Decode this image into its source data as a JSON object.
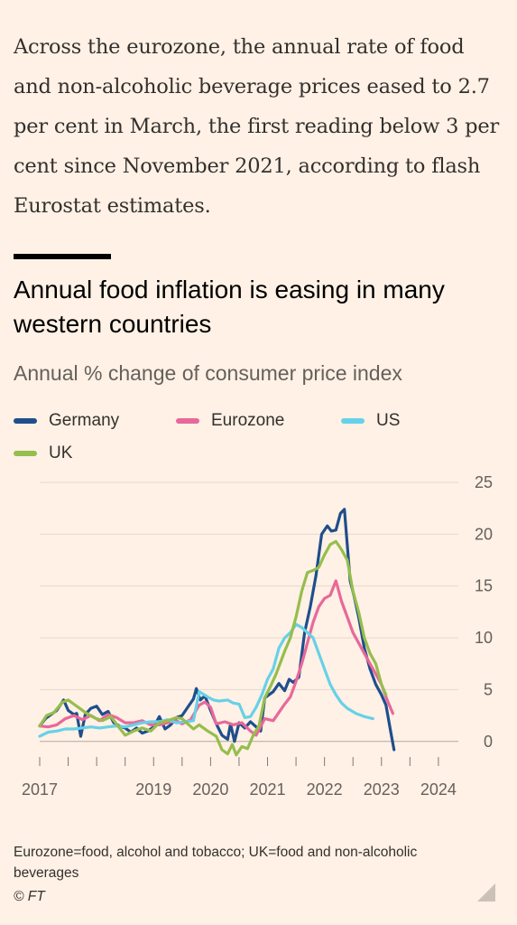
{
  "article": {
    "intro": "Across the eurozone, the annual rate of food and non-alcoholic beverage prices eased to 2.7 per cent in March, the first reading below 3 per cent since November 2021, according to flash Eurostat estimates."
  },
  "chart_data": {
    "type": "line",
    "title": "Annual food inflation is easing in many western countries",
    "subtitle": "Annual % change of consumer price index",
    "xlabel": "",
    "ylabel": "",
    "xlim": [
      2017.0,
      2024.35
    ],
    "ylim": [
      -1.5,
      25
    ],
    "y_ticks": [
      0,
      5,
      10,
      15,
      20,
      25
    ],
    "x_ticks": [
      2017,
      2019,
      2020,
      2021,
      2022,
      2023,
      2024
    ],
    "x_tick_labels": [
      "2017",
      "2019",
      "2020",
      "2021",
      "2022",
      "2023",
      "2024"
    ],
    "grid": true,
    "legend_position": "top-left",
    "series": [
      {
        "name": "Germany",
        "color": "#1f4e8c",
        "points": [
          [
            2017.0,
            1.5
          ],
          [
            2017.1,
            2.2
          ],
          [
            2017.2,
            2.6
          ],
          [
            2017.3,
            3.0
          ],
          [
            2017.42,
            4.0
          ],
          [
            2017.5,
            3.0
          ],
          [
            2017.6,
            2.6
          ],
          [
            2017.65,
            2.7
          ],
          [
            2017.72,
            0.5
          ],
          [
            2017.8,
            2.6
          ],
          [
            2017.9,
            3.2
          ],
          [
            2018.0,
            3.4
          ],
          [
            2018.1,
            2.6
          ],
          [
            2018.2,
            2.9
          ],
          [
            2018.3,
            1.8
          ],
          [
            2018.4,
            1.5
          ],
          [
            2018.5,
            1.3
          ],
          [
            2018.6,
            0.9
          ],
          [
            2018.7,
            1.3
          ],
          [
            2018.8,
            0.8
          ],
          [
            2018.9,
            1.0
          ],
          [
            2019.0,
            1.4
          ],
          [
            2019.1,
            2.4
          ],
          [
            2019.2,
            1.2
          ],
          [
            2019.3,
            1.6
          ],
          [
            2019.4,
            2.3
          ],
          [
            2019.5,
            2.5
          ],
          [
            2019.6,
            3.3
          ],
          [
            2019.7,
            4.1
          ],
          [
            2019.75,
            5.1
          ],
          [
            2019.82,
            4.0
          ],
          [
            2019.9,
            4.4
          ],
          [
            2020.0,
            3.0
          ],
          [
            2020.1,
            1.7
          ],
          [
            2020.2,
            0.6
          ],
          [
            2020.3,
            0.2
          ],
          [
            2020.35,
            1.7
          ],
          [
            2020.42,
            0.0
          ],
          [
            2020.5,
            1.8
          ],
          [
            2020.6,
            1.3
          ],
          [
            2020.7,
            1.9
          ],
          [
            2020.8,
            1.4
          ],
          [
            2020.88,
            1.0
          ],
          [
            2020.95,
            4.2
          ],
          [
            2021.1,
            4.8
          ],
          [
            2021.2,
            5.6
          ],
          [
            2021.3,
            4.9
          ],
          [
            2021.38,
            6.0
          ],
          [
            2021.45,
            5.7
          ],
          [
            2021.55,
            6.2
          ],
          [
            2021.65,
            10.5
          ],
          [
            2021.75,
            13.0
          ],
          [
            2021.85,
            16.0
          ],
          [
            2021.95,
            20.0
          ],
          [
            2022.05,
            20.8
          ],
          [
            2022.12,
            20.3
          ],
          [
            2022.2,
            20.4
          ],
          [
            2022.28,
            22.0
          ],
          [
            2022.35,
            22.4
          ],
          [
            2022.45,
            15.5
          ],
          [
            2022.52,
            14.0
          ],
          [
            2022.6,
            12.0
          ],
          [
            2022.7,
            9.0
          ],
          [
            2022.8,
            7.0
          ],
          [
            2022.9,
            5.5
          ],
          [
            2023.0,
            4.5
          ],
          [
            2023.08,
            3.5
          ],
          [
            2023.16,
            1.0
          ],
          [
            2023.22,
            -0.8
          ]
        ]
      },
      {
        "name": "Eurozone",
        "color": "#e8689a",
        "points": [
          [
            2017.0,
            1.5
          ],
          [
            2017.15,
            1.4
          ],
          [
            2017.3,
            1.6
          ],
          [
            2017.45,
            2.2
          ],
          [
            2017.6,
            2.5
          ],
          [
            2017.75,
            2.1
          ],
          [
            2017.9,
            2.5
          ],
          [
            2018.05,
            2.0
          ],
          [
            2018.2,
            2.6
          ],
          [
            2018.35,
            2.3
          ],
          [
            2018.5,
            1.8
          ],
          [
            2018.65,
            1.8
          ],
          [
            2018.8,
            2.0
          ],
          [
            2018.95,
            1.6
          ],
          [
            2019.1,
            1.6
          ],
          [
            2019.25,
            1.8
          ],
          [
            2019.4,
            2.0
          ],
          [
            2019.5,
            1.7
          ],
          [
            2019.65,
            2.1
          ],
          [
            2019.8,
            3.5
          ],
          [
            2019.9,
            3.8
          ],
          [
            2020.0,
            3.3
          ],
          [
            2020.1,
            1.7
          ],
          [
            2020.25,
            1.9
          ],
          [
            2020.4,
            1.6
          ],
          [
            2020.55,
            1.8
          ],
          [
            2020.7,
            1.0
          ],
          [
            2020.8,
            0.6
          ],
          [
            2020.95,
            2.2
          ],
          [
            2021.1,
            2.0
          ],
          [
            2021.2,
            2.8
          ],
          [
            2021.3,
            3.6
          ],
          [
            2021.4,
            4.3
          ],
          [
            2021.5,
            5.8
          ],
          [
            2021.6,
            7.5
          ],
          [
            2021.7,
            9.5
          ],
          [
            2021.8,
            11.5
          ],
          [
            2021.9,
            13.0
          ],
          [
            2022.0,
            13.8
          ],
          [
            2022.1,
            14.1
          ],
          [
            2022.2,
            15.5
          ],
          [
            2022.3,
            13.5
          ],
          [
            2022.4,
            12.0
          ],
          [
            2022.5,
            10.5
          ],
          [
            2022.6,
            9.5
          ],
          [
            2022.7,
            8.5
          ],
          [
            2022.8,
            7.5
          ],
          [
            2022.9,
            6.5
          ],
          [
            2023.0,
            5.5
          ],
          [
            2023.1,
            4.0
          ],
          [
            2023.2,
            2.7
          ]
        ]
      },
      {
        "name": "US",
        "color": "#66d1e8",
        "points": [
          [
            2017.0,
            0.5
          ],
          [
            2017.15,
            0.9
          ],
          [
            2017.3,
            1.0
          ],
          [
            2017.45,
            1.2
          ],
          [
            2017.6,
            1.2
          ],
          [
            2017.75,
            1.3
          ],
          [
            2017.9,
            1.4
          ],
          [
            2018.05,
            1.3
          ],
          [
            2018.2,
            1.4
          ],
          [
            2018.35,
            1.5
          ],
          [
            2018.5,
            1.4
          ],
          [
            2018.65,
            1.6
          ],
          [
            2018.8,
            1.8
          ],
          [
            2018.95,
            1.9
          ],
          [
            2019.1,
            1.9
          ],
          [
            2019.25,
            2.1
          ],
          [
            2019.4,
            1.8
          ],
          [
            2019.55,
            1.9
          ],
          [
            2019.7,
            2.0
          ],
          [
            2019.8,
            4.8
          ],
          [
            2019.95,
            4.3
          ],
          [
            2020.05,
            4.0
          ],
          [
            2020.15,
            3.9
          ],
          [
            2020.3,
            4.0
          ],
          [
            2020.4,
            3.7
          ],
          [
            2020.5,
            3.6
          ],
          [
            2020.6,
            2.3
          ],
          [
            2020.7,
            2.4
          ],
          [
            2020.8,
            3.3
          ],
          [
            2020.9,
            4.5
          ],
          [
            2021.0,
            6.0
          ],
          [
            2021.1,
            7.0
          ],
          [
            2021.2,
            9.0
          ],
          [
            2021.3,
            10.0
          ],
          [
            2021.4,
            10.5
          ],
          [
            2021.5,
            11.3
          ],
          [
            2021.6,
            11.0
          ],
          [
            2021.7,
            10.5
          ],
          [
            2021.8,
            10.0
          ],
          [
            2021.9,
            8.5
          ],
          [
            2022.0,
            7.0
          ],
          [
            2022.1,
            5.5
          ],
          [
            2022.2,
            4.5
          ],
          [
            2022.3,
            3.7
          ],
          [
            2022.4,
            3.2
          ],
          [
            2022.55,
            2.7
          ],
          [
            2022.7,
            2.4
          ],
          [
            2022.85,
            2.2
          ]
        ]
      },
      {
        "name": "UK",
        "color": "#96bd4d",
        "points": [
          [
            2017.0,
            1.5
          ],
          [
            2017.12,
            2.5
          ],
          [
            2017.25,
            2.8
          ],
          [
            2017.4,
            3.8
          ],
          [
            2017.5,
            4.0
          ],
          [
            2017.6,
            3.6
          ],
          [
            2017.7,
            3.2
          ],
          [
            2017.8,
            2.8
          ],
          [
            2017.95,
            2.3
          ],
          [
            2018.1,
            2.0
          ],
          [
            2018.25,
            2.4
          ],
          [
            2018.4,
            1.3
          ],
          [
            2018.5,
            0.6
          ],
          [
            2018.65,
            1.0
          ],
          [
            2018.8,
            1.3
          ],
          [
            2018.95,
            1.0
          ],
          [
            2019.1,
            1.8
          ],
          [
            2019.25,
            2.0
          ],
          [
            2019.4,
            2.3
          ],
          [
            2019.5,
            2.2
          ],
          [
            2019.6,
            1.7
          ],
          [
            2019.7,
            1.2
          ],
          [
            2019.8,
            1.6
          ],
          [
            2019.95,
            1.0
          ],
          [
            2020.1,
            0.5
          ],
          [
            2020.2,
            -0.8
          ],
          [
            2020.3,
            -1.2
          ],
          [
            2020.38,
            -0.3
          ],
          [
            2020.45,
            -1.3
          ],
          [
            2020.55,
            -0.5
          ],
          [
            2020.65,
            -0.7
          ],
          [
            2020.75,
            0.6
          ],
          [
            2020.85,
            1.5
          ],
          [
            2020.95,
            4.2
          ],
          [
            2021.05,
            5.3
          ],
          [
            2021.15,
            6.5
          ],
          [
            2021.3,
            8.7
          ],
          [
            2021.4,
            10.0
          ],
          [
            2021.5,
            12.0
          ],
          [
            2021.6,
            14.5
          ],
          [
            2021.7,
            16.3
          ],
          [
            2021.8,
            16.5
          ],
          [
            2021.9,
            16.8
          ],
          [
            2022.0,
            18.0
          ],
          [
            2022.1,
            19.0
          ],
          [
            2022.2,
            19.3
          ],
          [
            2022.3,
            18.5
          ],
          [
            2022.4,
            17.5
          ],
          [
            2022.5,
            14.5
          ],
          [
            2022.6,
            12.5
          ],
          [
            2022.7,
            10.0
          ],
          [
            2022.8,
            8.5
          ],
          [
            2022.9,
            7.5
          ],
          [
            2023.0,
            5.5
          ],
          [
            2023.08,
            4.5
          ]
        ]
      }
    ],
    "annotations": []
  },
  "footnote": {
    "note": "Eurozone=food, alcohol and tobacco; UK=food and non-alcoholic beverages",
    "copyright": "© FT"
  }
}
